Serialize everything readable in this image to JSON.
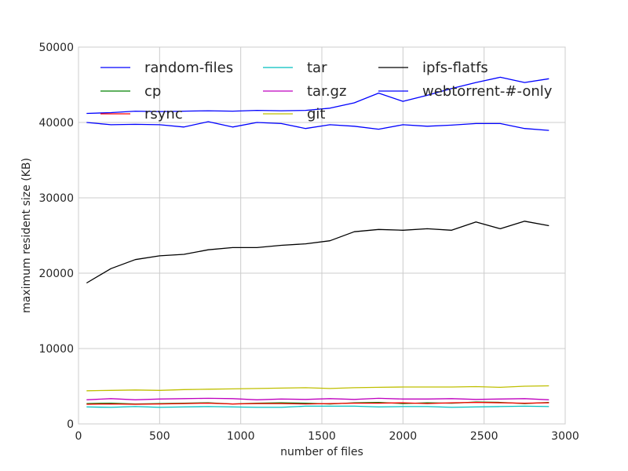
{
  "chart_data": {
    "type": "line",
    "xlabel": "number of files",
    "ylabel": "maximum resident size (KB)",
    "xlim": [
      0,
      3000
    ],
    "ylim": [
      0,
      50000
    ],
    "xticks": [
      0,
      500,
      1000,
      1500,
      2000,
      2500,
      3000
    ],
    "yticks": [
      0,
      10000,
      20000,
      30000,
      40000,
      50000
    ],
    "xtick_labels": [
      "0",
      "500",
      "1000",
      "1500",
      "2000",
      "2500",
      "3000"
    ],
    "ytick_labels": [
      "0",
      "10000",
      "20000",
      "30000",
      "40000",
      "50000"
    ],
    "grid": true,
    "legend_position": "top, 3 columns",
    "x": [
      50,
      200,
      350,
      500,
      650,
      800,
      950,
      1100,
      1250,
      1400,
      1550,
      1700,
      1850,
      2000,
      2150,
      2300,
      2450,
      2600,
      2750,
      2900
    ],
    "series": [
      {
        "name": "random-files",
        "color": "#0000ff",
        "values": [
          40000,
          39700,
          39750,
          39700,
          39400,
          40100,
          39400,
          40000,
          39850,
          39200,
          39700,
          39500,
          39100,
          39700,
          39500,
          39650,
          39850,
          39850,
          39200,
          38950
        ]
      },
      {
        "name": "cp",
        "color": "#008000",
        "values": [
          2700,
          2750,
          2650,
          2700,
          2750,
          2800,
          2650,
          2750,
          2800,
          2750,
          2650,
          2800,
          2850,
          2700,
          2800,
          2750,
          2900,
          2850,
          2700,
          2850
        ]
      },
      {
        "name": "rsync",
        "color": "#ff0000",
        "values": [
          2600,
          2650,
          2600,
          2650,
          2700,
          2750,
          2650,
          2700,
          2700,
          2650,
          2700,
          2750,
          2750,
          2800,
          2700,
          2800,
          2850,
          2800,
          2750,
          2800
        ]
      },
      {
        "name": "tar",
        "color": "#00bfbf",
        "values": [
          2250,
          2200,
          2300,
          2200,
          2250,
          2300,
          2250,
          2200,
          2200,
          2350,
          2350,
          2350,
          2250,
          2300,
          2300,
          2200,
          2250,
          2300,
          2350,
          2300
        ]
      },
      {
        "name": "tar.gz",
        "color": "#bf00bf",
        "values": [
          3200,
          3350,
          3200,
          3300,
          3350,
          3400,
          3350,
          3200,
          3300,
          3250,
          3350,
          3250,
          3400,
          3300,
          3300,
          3350,
          3250,
          3300,
          3350,
          3200
        ]
      },
      {
        "name": "git",
        "color": "#bfbf00",
        "values": [
          4400,
          4450,
          4500,
          4450,
          4550,
          4600,
          4650,
          4700,
          4750,
          4800,
          4700,
          4800,
          4850,
          4900,
          4900,
          4900,
          4950,
          4850,
          5000,
          5050
        ]
      },
      {
        "name": "ipfs-flatfs",
        "color": "#000000",
        "values": [
          18700,
          20600,
          21800,
          22300,
          22500,
          23100,
          23400,
          23400,
          23700,
          23900,
          24300,
          25500,
          25800,
          25700,
          25900,
          25700,
          26800,
          25900,
          26900,
          26300
        ]
      },
      {
        "name": "webtorrent-#-only",
        "color": "#0000ff",
        "values": [
          41200,
          41300,
          41500,
          41450,
          41500,
          41550,
          41500,
          41600,
          41550,
          41600,
          41900,
          42600,
          43900,
          42800,
          43600,
          44500,
          45300,
          46000,
          45300,
          45800
        ]
      }
    ]
  }
}
